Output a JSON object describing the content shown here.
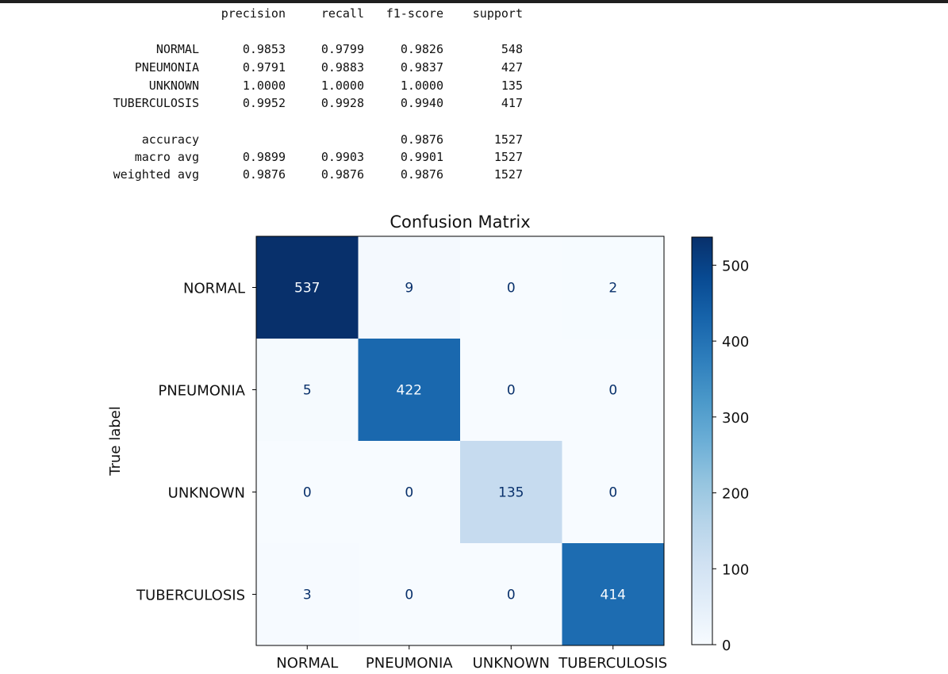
{
  "report": {
    "headers": [
      "precision",
      "recall",
      "f1-score",
      "support"
    ],
    "rows": [
      {
        "label": "NORMAL",
        "precision": "0.9853",
        "recall": "0.9799",
        "f1": "0.9826",
        "support": "548"
      },
      {
        "label": "PNEUMONIA",
        "precision": "0.9791",
        "recall": "0.9883",
        "f1": "0.9837",
        "support": "427"
      },
      {
        "label": "UNKNOWN",
        "precision": "1.0000",
        "recall": "1.0000",
        "f1": "1.0000",
        "support": "135"
      },
      {
        "label": "TUBERCULOSIS",
        "precision": "0.9952",
        "recall": "0.9928",
        "f1": "0.9940",
        "support": "417"
      }
    ],
    "summary": [
      {
        "label": "accuracy",
        "precision": "",
        "recall": "",
        "f1": "0.9876",
        "support": "1527"
      },
      {
        "label": "macro avg",
        "precision": "0.9899",
        "recall": "0.9903",
        "f1": "0.9901",
        "support": "1527"
      },
      {
        "label": "weighted avg",
        "precision": "0.9876",
        "recall": "0.9876",
        "f1": "0.9876",
        "support": "1527"
      }
    ]
  },
  "chart_data": {
    "type": "heatmap",
    "title": "Confusion Matrix",
    "ylabel": "True label",
    "xlabel": "",
    "categories": [
      "NORMAL",
      "PNEUMONIA",
      "UNKNOWN",
      "TUBERCULOSIS"
    ],
    "values": [
      [
        537,
        9,
        0,
        2
      ],
      [
        5,
        422,
        0,
        0
      ],
      [
        0,
        0,
        135,
        0
      ],
      [
        3,
        0,
        0,
        414
      ]
    ],
    "colormap": "Blues",
    "colorbar": {
      "min": 0,
      "max": 537,
      "ticks": [
        0,
        100,
        200,
        300,
        400,
        500
      ]
    }
  }
}
